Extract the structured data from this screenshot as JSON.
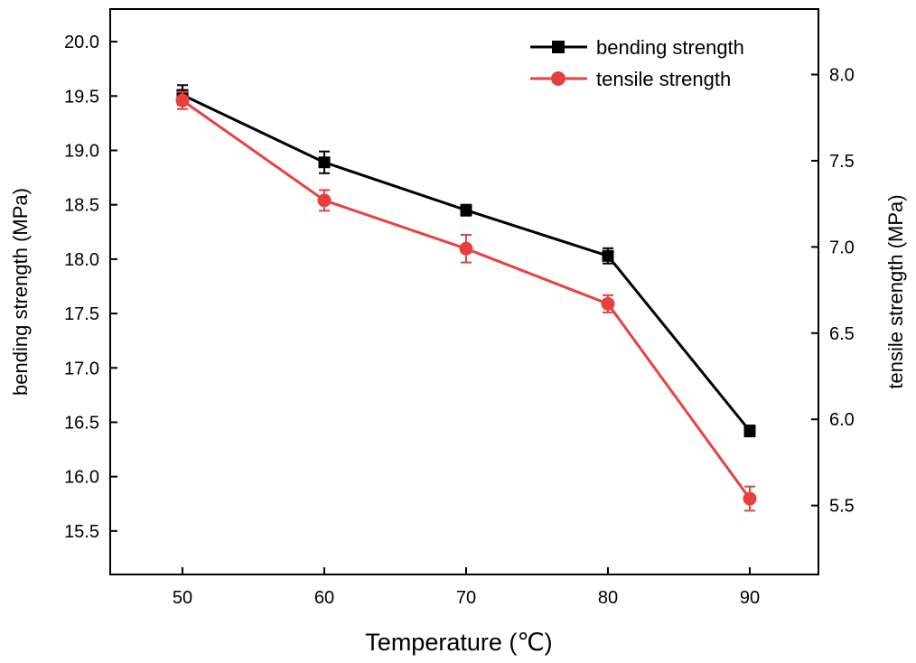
{
  "chart_data": {
    "type": "line",
    "title": "",
    "xlabel": "Temperature (℃)",
    "ylabel_left": "bending strength (MPa)",
    "ylabel_right": "tensile strength (MPa)",
    "x": [
      50,
      60,
      70,
      80,
      90
    ],
    "x_ticks": [
      "50",
      "60",
      "70",
      "80",
      "90"
    ],
    "xlim": [
      45,
      95
    ],
    "y_left_lim": [
      15.1,
      20.3
    ],
    "y_left_ticks": [
      "15.5",
      "16.0",
      "16.5",
      "17.0",
      "17.5",
      "18.0",
      "18.5",
      "19.0",
      "19.5",
      "20.0"
    ],
    "y_right_lim": [
      5.1,
      8.38
    ],
    "y_right_ticks": [
      "5.5",
      "6.0",
      "6.5",
      "7.0",
      "7.5",
      "8.0"
    ],
    "grid": false,
    "legend_position": "top-right",
    "series": [
      {
        "name": "bending strength",
        "axis": "left",
        "color": "#000000",
        "marker": "square",
        "values": [
          19.51,
          18.89,
          18.45,
          18.03,
          16.42
        ],
        "errors": [
          0.09,
          0.1,
          0.05,
          0.07,
          0.05
        ]
      },
      {
        "name": "tensile strength",
        "axis": "right",
        "color": "#e8403f",
        "marker": "circle",
        "values": [
          7.85,
          7.27,
          6.99,
          6.67,
          5.54
        ],
        "errors": [
          0.05,
          0.06,
          0.08,
          0.05,
          0.07
        ]
      }
    ]
  }
}
